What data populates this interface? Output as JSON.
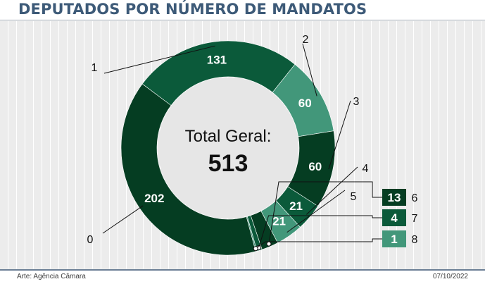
{
  "header": {
    "title": "DEPUTADOS POR NÚMERO DE MANDATOS"
  },
  "footer": {
    "credit": "Arte: Agência Câmara",
    "date": "07/10/2022"
  },
  "chart_data": {
    "type": "pie",
    "title": "DEPUTADOS POR NÚMERO DE MANDATOS",
    "center_label": "Total Geral:",
    "total": "513",
    "categories": [
      "0",
      "1",
      "2",
      "3",
      "4",
      "5",
      "6",
      "7",
      "8"
    ],
    "values": [
      202,
      131,
      60,
      60,
      21,
      21,
      13,
      4,
      1
    ],
    "colors": [
      "#053d22",
      "#0b5a3a",
      "#42977a",
      "#053d22",
      "#0b5a3a",
      "#42977a",
      "#053d22",
      "#0b5a3a",
      "#42977a"
    ],
    "legend_placement": "outside-labels"
  }
}
